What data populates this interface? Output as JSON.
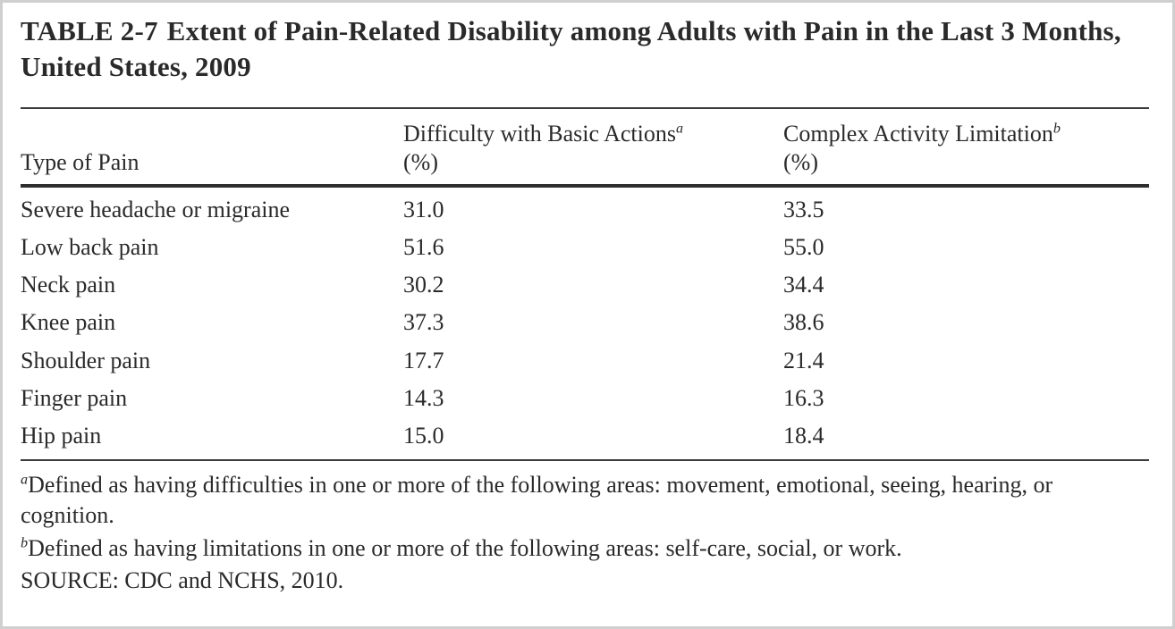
{
  "title": {
    "label": "TABLE 2-7",
    "text": "Extent of Pain-Related Disability among Adults with Pain in the Last 3 Months, United States, 2009"
  },
  "table": {
    "columns": [
      {
        "label": "Type of Pain",
        "sup": "",
        "unit": ""
      },
      {
        "label": "Difficulty with Basic Actions",
        "sup": "a",
        "unit": "(%)"
      },
      {
        "label": "Complex Activity Limitation",
        "sup": "b",
        "unit": "(%)"
      }
    ],
    "rows": [
      {
        "type": "Severe headache or migraine",
        "difficulty": "31.0",
        "limitation": "33.5"
      },
      {
        "type": "Low back pain",
        "difficulty": "51.6",
        "limitation": "55.0"
      },
      {
        "type": "Neck pain",
        "difficulty": "30.2",
        "limitation": "34.4"
      },
      {
        "type": "Knee pain",
        "difficulty": "37.3",
        "limitation": "38.6"
      },
      {
        "type": "Shoulder pain",
        "difficulty": "17.7",
        "limitation": "21.4"
      },
      {
        "type": "Finger pain",
        "difficulty": "14.3",
        "limitation": "16.3"
      },
      {
        "type": "Hip pain",
        "difficulty": "15.0",
        "limitation": "18.4"
      }
    ]
  },
  "footnotes": [
    {
      "sup": "a",
      "text": "Defined as having difficulties in one or more of the following areas: movement, emotional, seeing, hearing, or cognition."
    },
    {
      "sup": "b",
      "text": "Defined as having limitations in one or more of the following areas: self-care, social, or work."
    }
  ],
  "source": "SOURCE: CDC and NCHS, 2010."
}
